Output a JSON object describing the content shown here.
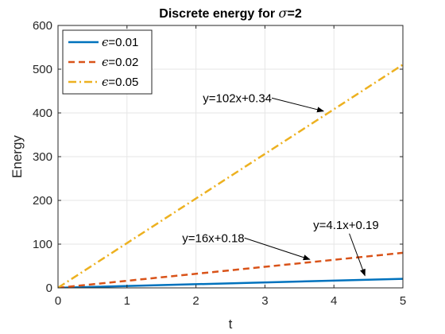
{
  "chart_data": {
    "type": "line",
    "title": {
      "prefix": "Discrete energy for ",
      "symbol": "σ",
      "suffix": "=2"
    },
    "xlabel": "t",
    "ylabel": "Energy",
    "xlim": [
      0,
      5
    ],
    "ylim": [
      0,
      600
    ],
    "xticks": [
      0,
      1,
      2,
      3,
      4,
      5
    ],
    "yticks": [
      0,
      100,
      200,
      300,
      400,
      500,
      600
    ],
    "grid": true,
    "legend_location": "top-left",
    "x": [
      0,
      5
    ],
    "series": [
      {
        "name": "ϵ=0.01",
        "symbol": "ϵ",
        "name_suffix": "=0.01",
        "color": "#0072BD",
        "style": "solid",
        "values": [
          0.19,
          20.69
        ]
      },
      {
        "name": "ϵ=0.02",
        "symbol": "ϵ",
        "name_suffix": "=0.02",
        "color": "#D95319",
        "style": "dashed",
        "values": [
          0.18,
          80.18
        ]
      },
      {
        "name": "ϵ=0.05",
        "symbol": "ϵ",
        "name_suffix": "=0.05",
        "color": "#EDB120",
        "style": "dashdot",
        "values": [
          0.34,
          510.34
        ]
      }
    ],
    "annotations": [
      {
        "text": "y=102x+0.34",
        "x": 2.1,
        "y": 425,
        "arrow_to": [
          3.85,
          404
        ]
      },
      {
        "text": "y=16x+0.18",
        "x": 1.8,
        "y": 105,
        "arrow_to": [
          3.65,
          65
        ]
      },
      {
        "text": "y=4.1x+0.19",
        "x": 3.7,
        "y": 135,
        "arrow_to": [
          4.45,
          28
        ]
      }
    ]
  }
}
